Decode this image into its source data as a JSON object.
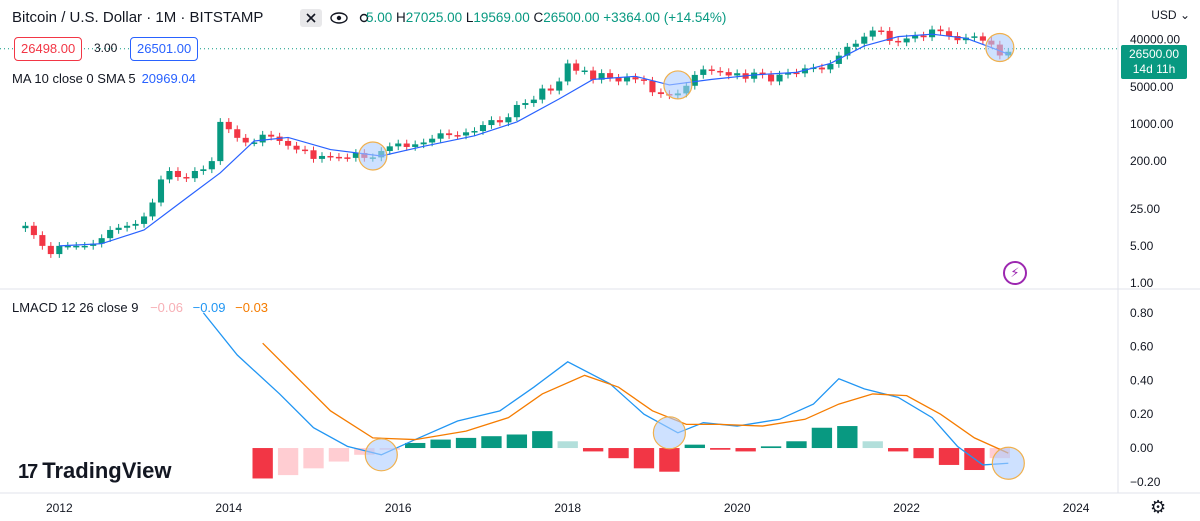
{
  "header": {
    "symbol": "Bitcoin / U.S. Dollar · 1M · BITSTAMP",
    "ohlc_fragment": "5.00",
    "high_label": "H",
    "high": "27025.00",
    "low_label": "L",
    "low": "19569.00",
    "close_label": "C",
    "close": "26500.00",
    "change": "+3364.00 (+14.54%)",
    "bid": "26498.00",
    "spread": "3.00",
    "ask": "26501.00"
  },
  "currency": "USD",
  "last_price": "26500.00",
  "countdown": "14d 11h",
  "ma_legend": {
    "label": "MA 10 close 0 SMA 5",
    "value": "20969.04"
  },
  "lmacd_legend": {
    "label": "LMACD 12 26 close 9",
    "hist": "−0.06",
    "macd": "−0.09",
    "signal": "−0.03"
  },
  "brand": "TradingView",
  "colors": {
    "up": "#089981",
    "down": "#f23645",
    "ma": "#2962ff",
    "macd": "#2196f3",
    "signal": "#f57c00",
    "hist_up_weak": "#b2dfdb",
    "hist_down_weak": "#ffcdd2",
    "circle": "#f0b04d"
  },
  "icons": [
    "close-icon",
    "eye-icon",
    "gear-icon",
    "bolt-icon",
    "settings-icon",
    "tradingview-logo"
  ],
  "chart_data": [
    {
      "type": "candlestick",
      "scale": "log",
      "yticks": [
        1,
        5,
        25,
        200,
        1000,
        5000,
        40000
      ],
      "ytick_labels": [
        "1.00",
        "5.00",
        "25.00",
        "200.00",
        "1000.00",
        "5000.00",
        "40000.00"
      ],
      "ylim": [
        0.8,
        60000
      ],
      "xticks": [
        2012,
        2014,
        2016,
        2018,
        2020,
        2022,
        2024
      ],
      "xticks_labels": [
        "2012",
        "2014",
        "2016",
        "2018",
        "2020",
        "2022",
        "2024"
      ],
      "xlim": [
        2011.3,
        2024.4
      ],
      "candles": [
        {
          "t": 2011.6,
          "v": 12
        },
        {
          "t": 2011.7,
          "v": 8
        },
        {
          "t": 2011.8,
          "v": 5
        },
        {
          "t": 2011.9,
          "v": 3.5
        },
        {
          "t": 2012.0,
          "v": 5
        },
        {
          "t": 2012.1,
          "v": 5
        },
        {
          "t": 2012.2,
          "v": 5
        },
        {
          "t": 2012.3,
          "v": 5
        },
        {
          "t": 2012.4,
          "v": 5.5
        },
        {
          "t": 2012.5,
          "v": 7
        },
        {
          "t": 2012.6,
          "v": 10
        },
        {
          "t": 2012.7,
          "v": 11
        },
        {
          "t": 2012.8,
          "v": 12
        },
        {
          "t": 2012.9,
          "v": 13
        },
        {
          "t": 2013.0,
          "v": 18
        },
        {
          "t": 2013.1,
          "v": 33
        },
        {
          "t": 2013.2,
          "v": 90
        },
        {
          "t": 2013.3,
          "v": 130
        },
        {
          "t": 2013.4,
          "v": 100
        },
        {
          "t": 2013.5,
          "v": 95
        },
        {
          "t": 2013.6,
          "v": 130
        },
        {
          "t": 2013.7,
          "v": 140
        },
        {
          "t": 2013.8,
          "v": 200
        },
        {
          "t": 2013.9,
          "v": 1100
        },
        {
          "t": 2014.0,
          "v": 800
        },
        {
          "t": 2014.1,
          "v": 550
        },
        {
          "t": 2014.2,
          "v": 450
        },
        {
          "t": 2014.3,
          "v": 450
        },
        {
          "t": 2014.4,
          "v": 630
        },
        {
          "t": 2014.5,
          "v": 580
        },
        {
          "t": 2014.6,
          "v": 480
        },
        {
          "t": 2014.7,
          "v": 390
        },
        {
          "t": 2014.8,
          "v": 330
        },
        {
          "t": 2014.9,
          "v": 320
        },
        {
          "t": 2015.0,
          "v": 220
        },
        {
          "t": 2015.1,
          "v": 250
        },
        {
          "t": 2015.2,
          "v": 240
        },
        {
          "t": 2015.3,
          "v": 235
        },
        {
          "t": 2015.4,
          "v": 230
        },
        {
          "t": 2015.5,
          "v": 285
        },
        {
          "t": 2015.6,
          "v": 230
        },
        {
          "t": 2015.7,
          "v": 235
        },
        {
          "t": 2015.8,
          "v": 310
        },
        {
          "t": 2015.9,
          "v": 380
        },
        {
          "t": 2016.0,
          "v": 430
        },
        {
          "t": 2016.1,
          "v": 370
        },
        {
          "t": 2016.2,
          "v": 415
        },
        {
          "t": 2016.3,
          "v": 450
        },
        {
          "t": 2016.4,
          "v": 530
        },
        {
          "t": 2016.5,
          "v": 670
        },
        {
          "t": 2016.6,
          "v": 620
        },
        {
          "t": 2016.7,
          "v": 610
        },
        {
          "t": 2016.8,
          "v": 700
        },
        {
          "t": 2016.9,
          "v": 740
        },
        {
          "t": 2017.0,
          "v": 960
        },
        {
          "t": 2017.1,
          "v": 1190
        },
        {
          "t": 2017.2,
          "v": 1080
        },
        {
          "t": 2017.3,
          "v": 1350
        },
        {
          "t": 2017.4,
          "v": 2300
        },
        {
          "t": 2017.5,
          "v": 2500
        },
        {
          "t": 2017.6,
          "v": 2900
        },
        {
          "t": 2017.7,
          "v": 4700
        },
        {
          "t": 2017.8,
          "v": 4300
        },
        {
          "t": 2017.9,
          "v": 6400
        },
        {
          "t": 2018.0,
          "v": 14000
        },
        {
          "t": 2018.1,
          "v": 10200
        },
        {
          "t": 2018.2,
          "v": 10300
        },
        {
          "t": 2018.3,
          "v": 6900
        },
        {
          "t": 2018.4,
          "v": 9200
        },
        {
          "t": 2018.5,
          "v": 7500
        },
        {
          "t": 2018.6,
          "v": 6400
        },
        {
          "t": 2018.7,
          "v": 7700
        },
        {
          "t": 2018.8,
          "v": 7000
        },
        {
          "t": 2018.9,
          "v": 6600
        },
        {
          "t": 2019.0,
          "v": 4000
        },
        {
          "t": 2019.1,
          "v": 3700
        },
        {
          "t": 2019.2,
          "v": 3500
        },
        {
          "t": 2019.3,
          "v": 3800
        },
        {
          "t": 2019.4,
          "v": 5300
        },
        {
          "t": 2019.5,
          "v": 8500
        },
        {
          "t": 2019.6,
          "v": 10800
        },
        {
          "t": 2019.7,
          "v": 10100
        },
        {
          "t": 2019.8,
          "v": 9600
        },
        {
          "t": 2019.9,
          "v": 8300
        },
        {
          "t": 2020.0,
          "v": 9150
        },
        {
          "t": 2020.1,
          "v": 7200
        },
        {
          "t": 2020.2,
          "v": 9400
        },
        {
          "t": 2020.3,
          "v": 8600
        },
        {
          "t": 2020.4,
          "v": 6400
        },
        {
          "t": 2020.5,
          "v": 8600
        },
        {
          "t": 2020.6,
          "v": 9400
        },
        {
          "t": 2020.7,
          "v": 9100
        },
        {
          "t": 2020.8,
          "v": 11300
        },
        {
          "t": 2020.9,
          "v": 11700
        },
        {
          "t": 2021.0,
          "v": 10800
        },
        {
          "t": 2021.1,
          "v": 13700
        },
        {
          "t": 2021.2,
          "v": 19700
        },
        {
          "t": 2021.3,
          "v": 28900
        },
        {
          "t": 2021.4,
          "v": 33100
        },
        {
          "t": 2021.5,
          "v": 45000
        },
        {
          "t": 2021.6,
          "v": 58700
        },
        {
          "t": 2021.7,
          "v": 57700
        },
        {
          "t": 2021.8,
          "v": 37300
        },
        {
          "t": 2021.9,
          "v": 35000
        },
        {
          "t": 2022.0,
          "v": 41500
        },
        {
          "t": 2022.1,
          "v": 47100
        },
        {
          "t": 2022.2,
          "v": 43800
        },
        {
          "t": 2022.3,
          "v": 61300
        },
        {
          "t": 2022.4,
          "v": 57000
        },
        {
          "t": 2022.5,
          "v": 46200
        },
        {
          "t": 2022.6,
          "v": 38500
        },
        {
          "t": 2022.7,
          "v": 43100
        },
        {
          "t": 2022.8,
          "v": 45500
        },
        {
          "t": 2022.9,
          "v": 37700
        },
        {
          "t": 2023.0,
          "v": 31800
        },
        {
          "t": 2023.1,
          "v": 19800
        },
        {
          "t": 2023.2,
          "v": 23300
        }
      ],
      "ma": [
        {
          "t": 2012.0,
          "v": 5
        },
        {
          "t": 2012.5,
          "v": 5.5
        },
        {
          "t": 2013.0,
          "v": 10
        },
        {
          "t": 2013.5,
          "v": 40
        },
        {
          "t": 2013.9,
          "v": 120
        },
        {
          "t": 2014.3,
          "v": 480
        },
        {
          "t": 2014.7,
          "v": 560
        },
        {
          "t": 2015.2,
          "v": 330
        },
        {
          "t": 2015.8,
          "v": 250
        },
        {
          "t": 2016.3,
          "v": 380
        },
        {
          "t": 2016.9,
          "v": 600
        },
        {
          "t": 2017.4,
          "v": 1100
        },
        {
          "t": 2017.9,
          "v": 3000
        },
        {
          "t": 2018.3,
          "v": 7000
        },
        {
          "t": 2018.8,
          "v": 8000
        },
        {
          "t": 2019.2,
          "v": 5500
        },
        {
          "t": 2019.7,
          "v": 7000
        },
        {
          "t": 2020.2,
          "v": 8500
        },
        {
          "t": 2020.7,
          "v": 9500
        },
        {
          "t": 2021.1,
          "v": 14000
        },
        {
          "t": 2021.5,
          "v": 30000
        },
        {
          "t": 2021.9,
          "v": 45000
        },
        {
          "t": 2022.3,
          "v": 50000
        },
        {
          "t": 2022.7,
          "v": 42000
        },
        {
          "t": 2023.0,
          "v": 28000
        },
        {
          "t": 2023.2,
          "v": 21000
        }
      ],
      "highlight_circles": [
        2015.7,
        2019.3,
        2023.1
      ]
    },
    {
      "type": "macd",
      "yticks": [
        -0.2,
        0,
        0.2,
        0.4,
        0.6,
        0.8
      ],
      "ytick_labels": [
        "−0.20",
        "0.00",
        "0.20",
        "0.40",
        "0.60",
        "0.80"
      ],
      "ylim": [
        -0.26,
        0.84
      ],
      "macd": [
        {
          "t": 2013.7,
          "v": 0.8
        },
        {
          "t": 2014.1,
          "v": 0.55
        },
        {
          "t": 2014.6,
          "v": 0.32
        },
        {
          "t": 2015.0,
          "v": 0.12
        },
        {
          "t": 2015.4,
          "v": 0.01
        },
        {
          "t": 2015.8,
          "v": -0.04
        },
        {
          "t": 2016.2,
          "v": 0.05
        },
        {
          "t": 2016.7,
          "v": 0.16
        },
        {
          "t": 2017.2,
          "v": 0.22
        },
        {
          "t": 2017.6,
          "v": 0.36
        },
        {
          "t": 2018.0,
          "v": 0.51
        },
        {
          "t": 2018.5,
          "v": 0.38
        },
        {
          "t": 2018.9,
          "v": 0.2
        },
        {
          "t": 2019.3,
          "v": 0.09
        },
        {
          "t": 2019.6,
          "v": 0.15
        },
        {
          "t": 2020.0,
          "v": 0.13
        },
        {
          "t": 2020.5,
          "v": 0.17
        },
        {
          "t": 2020.9,
          "v": 0.26
        },
        {
          "t": 2021.2,
          "v": 0.41
        },
        {
          "t": 2021.5,
          "v": 0.35
        },
        {
          "t": 2021.9,
          "v": 0.3
        },
        {
          "t": 2022.3,
          "v": 0.18
        },
        {
          "t": 2022.6,
          "v": 0.01
        },
        {
          "t": 2022.9,
          "v": -0.1
        },
        {
          "t": 2023.2,
          "v": -0.09
        }
      ],
      "signal": [
        {
          "t": 2014.4,
          "v": 0.62
        },
        {
          "t": 2014.8,
          "v": 0.42
        },
        {
          "t": 2015.2,
          "v": 0.22
        },
        {
          "t": 2015.7,
          "v": 0.06
        },
        {
          "t": 2016.2,
          "v": 0.05
        },
        {
          "t": 2016.8,
          "v": 0.1
        },
        {
          "t": 2017.3,
          "v": 0.18
        },
        {
          "t": 2017.7,
          "v": 0.32
        },
        {
          "t": 2018.2,
          "v": 0.43
        },
        {
          "t": 2018.6,
          "v": 0.36
        },
        {
          "t": 2019.0,
          "v": 0.22
        },
        {
          "t": 2019.4,
          "v": 0.14
        },
        {
          "t": 2019.8,
          "v": 0.14
        },
        {
          "t": 2020.3,
          "v": 0.13
        },
        {
          "t": 2020.8,
          "v": 0.17
        },
        {
          "t": 2021.2,
          "v": 0.26
        },
        {
          "t": 2021.6,
          "v": 0.32
        },
        {
          "t": 2022.0,
          "v": 0.31
        },
        {
          "t": 2022.4,
          "v": 0.2
        },
        {
          "t": 2022.8,
          "v": 0.06
        },
        {
          "t": 2023.2,
          "v": -0.03
        }
      ],
      "histogram": [
        {
          "t": 2014.4,
          "v": -0.18
        },
        {
          "t": 2014.7,
          "v": -0.16
        },
        {
          "t": 2015.0,
          "v": -0.12
        },
        {
          "t": 2015.3,
          "v": -0.08
        },
        {
          "t": 2015.6,
          "v": -0.04
        },
        {
          "t": 2015.9,
          "v": -0.01
        },
        {
          "t": 2016.2,
          "v": 0.03
        },
        {
          "t": 2016.5,
          "v": 0.05
        },
        {
          "t": 2016.8,
          "v": 0.06
        },
        {
          "t": 2017.1,
          "v": 0.07
        },
        {
          "t": 2017.4,
          "v": 0.08
        },
        {
          "t": 2017.7,
          "v": 0.1
        },
        {
          "t": 2018.0,
          "v": 0.04
        },
        {
          "t": 2018.3,
          "v": -0.02
        },
        {
          "t": 2018.6,
          "v": -0.06
        },
        {
          "t": 2018.9,
          "v": -0.12
        },
        {
          "t": 2019.2,
          "v": -0.14
        },
        {
          "t": 2019.5,
          "v": 0.02
        },
        {
          "t": 2019.8,
          "v": -0.01
        },
        {
          "t": 2020.1,
          "v": -0.02
        },
        {
          "t": 2020.4,
          "v": 0.01
        },
        {
          "t": 2020.7,
          "v": 0.04
        },
        {
          "t": 2021.0,
          "v": 0.12
        },
        {
          "t": 2021.3,
          "v": 0.13
        },
        {
          "t": 2021.6,
          "v": 0.04
        },
        {
          "t": 2021.9,
          "v": -0.02
        },
        {
          "t": 2022.2,
          "v": -0.06
        },
        {
          "t": 2022.5,
          "v": -0.1
        },
        {
          "t": 2022.8,
          "v": -0.13
        },
        {
          "t": 2023.1,
          "v": -0.06
        }
      ],
      "highlight_circles": [
        2015.8,
        2019.2,
        2023.2
      ]
    }
  ]
}
